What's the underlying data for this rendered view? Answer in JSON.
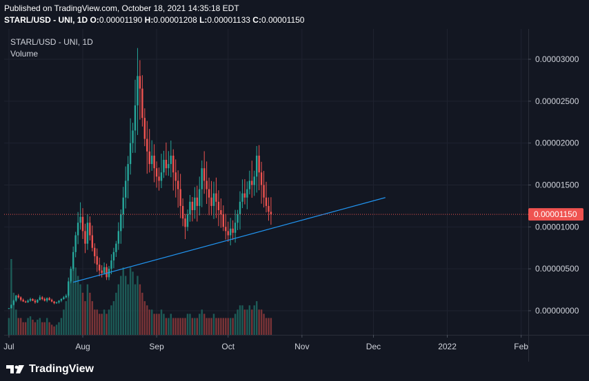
{
  "header": {
    "published": "Published on TradingView.com, October 18, 2021 14:35:18 EDT",
    "symbol": "STARL/USD - UNI, 1D",
    "o_label": "O:",
    "o_value": "0.00001190",
    "h_label": "H:",
    "h_value": "0.00001208",
    "l_label": "L:",
    "l_value": "0.00001133",
    "c_label": "C:",
    "c_value": "0.00001150"
  },
  "legend": {
    "title": "STARL/USD - UNI, 1D",
    "volume_label": "Volume"
  },
  "footer": {
    "brand": "TradingView",
    "logo_icon": "tradingview-logo-icon"
  },
  "colors": {
    "background": "#131722",
    "grid": "#1f2330",
    "up": "#26a69a",
    "down": "#ef5350",
    "up_volume": "#1d5b57",
    "down_volume": "#7a3437",
    "trendline": "#2196f3",
    "price_line": "#ef5350",
    "text": "#d1d4dc"
  },
  "chart_data": {
    "type": "candlestick",
    "title": "STARL/USD - UNI, 1D",
    "ylim": [
      -3e-07,
      3.1e-06
    ],
    "y_ticks": [
      {
        "value": 3e-05,
        "label": "0.00003000"
      },
      {
        "value": 2.5e-05,
        "label": "0.00002500"
      },
      {
        "value": 2e-05,
        "label": "0.00002000"
      },
      {
        "value": 1.5e-05,
        "label": "0.00001500"
      },
      {
        "value": 1e-05,
        "label": "0.00001000"
      },
      {
        "value": 5e-06,
        "label": "0.00000500"
      },
      {
        "value": 0,
        "label": "0.00000000"
      }
    ],
    "x_ticks": [
      {
        "day": 0,
        "label": "Jul"
      },
      {
        "day": 31,
        "label": "Aug"
      },
      {
        "day": 62,
        "label": "Sep"
      },
      {
        "day": 92,
        "label": "Oct"
      },
      {
        "day": 123,
        "label": "Nov"
      },
      {
        "day": 153,
        "label": "Dec"
      },
      {
        "day": 184,
        "label": "2022"
      },
      {
        "day": 215,
        "label": "Feb"
      }
    ],
    "x_range_days": [
      -2,
      218
    ],
    "start_date": "2021-07-01",
    "last_price": {
      "value": 1.15e-05,
      "label": "0.00001150"
    },
    "trendline": {
      "from": {
        "day": 27,
        "price": 3.4e-06
      },
      "to": {
        "day": 158,
        "price": 1.35e-05
      }
    },
    "closes": [
      3e-07,
      7e-07,
      1.2e-06,
      1.8e-06,
      1.6e-06,
      1.3e-06,
      1.1e-06,
      1e-06,
      1.2e-06,
      1.4e-06,
      1.2e-06,
      1e-06,
      1.3e-06,
      1.6e-06,
      1.4e-06,
      1.2e-06,
      1.5e-06,
      1.3e-06,
      1.1e-06,
      9e-07,
      1e-06,
      1.2e-06,
      1.4e-06,
      1.6e-06,
      1.8e-06,
      3.5e-06,
      5e-06,
      7e-06,
      9e-06,
      1.05e-05,
      1.12e-05,
      9.5e-06,
      8e-06,
      1.05e-05,
      9e-06,
      7.5e-06,
      6.5e-06,
      5.5e-06,
      4.8e-06,
      4.5e-06,
      5.2e-06,
      4e-06,
      5e-06,
      6e-06,
      7e-06,
      8e-06,
      9.5e-06,
      1.15e-05,
      1.35e-05,
      1.55e-05,
      1.75e-05,
      2e-05,
      2.15e-05,
      2.45e-05,
      2.8e-05,
      2.65e-05,
      2.3e-05,
      2.05e-05,
      1.9e-05,
      1.75e-05,
      1.85e-05,
      1.7e-05,
      1.6e-05,
      1.55e-05,
      1.65e-05,
      1.8e-05,
      1.7e-05,
      1.75e-05,
      1.85e-05,
      1.65e-05,
      1.55e-05,
      1.45e-05,
      1.25e-05,
      1.1e-05,
      1e-05,
      1.15e-05,
      1.3e-05,
      1.2e-05,
      1.35e-05,
      1.25e-05,
      1.45e-05,
      1.7e-05,
      1.55e-05,
      1.45e-05,
      1.35e-05,
      1.25e-05,
      1.4e-05,
      1.3e-05,
      1.2e-05,
      1.15e-05,
      1e-05,
      9.5e-06,
      9e-06,
      9.8e-06,
      9.3e-06,
      1.05e-05,
      1.15e-05,
      1.3e-05,
      1.4e-05,
      1.35e-05,
      1.45e-05,
      1.55e-05,
      1.5e-05,
      1.6e-05,
      1.85e-05,
      1.65e-05,
      1.5e-05,
      1.35e-05,
      1.25e-05,
      1.18e-05,
      1.15e-05
    ],
    "volumes": [
      2,
      9,
      5,
      3,
      2,
      2,
      1.5,
      1.5,
      2,
      2.2,
      1.8,
      1.5,
      1.8,
      2,
      1.5,
      1.5,
      2,
      1.5,
      1.2,
      1,
      1.2,
      1.5,
      2,
      3,
      4,
      6,
      7,
      9,
      8,
      7,
      6,
      5,
      4,
      6,
      5,
      4,
      3,
      3,
      2.5,
      2.5,
      3,
      2.5,
      3,
      3.5,
      4,
      5,
      6,
      7,
      8,
      7,
      6,
      8,
      7.5,
      6,
      7,
      6,
      5,
      4,
      3.5,
      3,
      3,
      2.5,
      2.5,
      2.5,
      3,
      2.5,
      2,
      2,
      2.5,
      2,
      2,
      2,
      2,
      2,
      2,
      2.5,
      2.5,
      2,
      2,
      2,
      2.5,
      3,
      2.5,
      2,
      2,
      2,
      2.5,
      2,
      2,
      2,
      2,
      2,
      2,
      2,
      2,
      2.5,
      3,
      3.5,
      3.5,
      3,
      3,
      3.5,
      3,
      3.5,
      4,
      3,
      3,
      2.5,
      2,
      2,
      2
    ]
  }
}
